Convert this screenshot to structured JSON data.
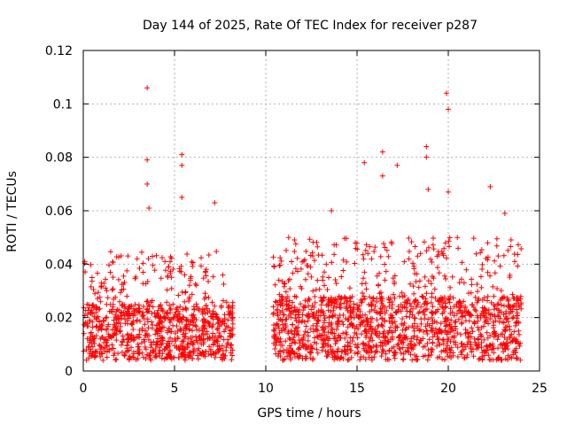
{
  "chart_data": {
    "type": "scatter",
    "title": "Day 144 of 2025, Rate Of TEC Index for receiver p287",
    "xlabel": "GPS time / hours",
    "ylabel": "ROTI / TECUs",
    "xlim": [
      0,
      25
    ],
    "ylim": [
      0,
      0.12
    ],
    "x_ticks": [
      "0",
      "5",
      "10",
      "15",
      "20",
      "25"
    ],
    "y_ticks": [
      "0",
      "0.02",
      "0.04",
      "0.06",
      "0.08",
      "0.1",
      "0.12"
    ],
    "grid": true,
    "marker": "+",
    "series_color": "#ff0000",
    "data_segments": [
      {
        "x_start": 0.0,
        "x_end": 8.2,
        "typical_range": [
          0.004,
          0.025
        ],
        "max_typical": 0.045
      },
      {
        "x_start": 10.4,
        "x_end": 24.0,
        "typical_range": [
          0.004,
          0.028
        ],
        "max_typical": 0.05
      }
    ],
    "outliers": [
      {
        "x": 3.5,
        "y": 0.106
      },
      {
        "x": 3.5,
        "y": 0.079
      },
      {
        "x": 3.5,
        "y": 0.07
      },
      {
        "x": 3.6,
        "y": 0.061
      },
      {
        "x": 5.4,
        "y": 0.081
      },
      {
        "x": 5.4,
        "y": 0.077
      },
      {
        "x": 5.4,
        "y": 0.065
      },
      {
        "x": 7.2,
        "y": 0.063
      },
      {
        "x": 13.6,
        "y": 0.06
      },
      {
        "x": 15.4,
        "y": 0.078
      },
      {
        "x": 16.4,
        "y": 0.082
      },
      {
        "x": 16.4,
        "y": 0.073
      },
      {
        "x": 17.2,
        "y": 0.077
      },
      {
        "x": 18.8,
        "y": 0.084
      },
      {
        "x": 18.8,
        "y": 0.08
      },
      {
        "x": 18.9,
        "y": 0.068
      },
      {
        "x": 19.9,
        "y": 0.104
      },
      {
        "x": 20.0,
        "y": 0.098
      },
      {
        "x": 20.0,
        "y": 0.067
      },
      {
        "x": 22.3,
        "y": 0.069
      },
      {
        "x": 23.1,
        "y": 0.059
      }
    ]
  }
}
